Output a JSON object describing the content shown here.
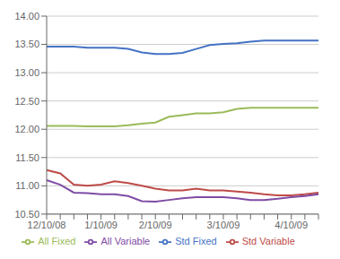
{
  "chart_data": {
    "type": "line",
    "title": "",
    "categories": [
      "12/10/08",
      null,
      null,
      null,
      "1/10/09",
      null,
      null,
      null,
      "2/10/09",
      null,
      null,
      null,
      null,
      "3/10/09",
      null,
      null,
      null,
      null,
      "4/10/09",
      null,
      null
    ],
    "series": [
      {
        "name": "Std Fixed",
        "color": "#4472C4",
        "values": [
          13.46,
          13.46,
          13.46,
          13.44,
          13.44,
          13.44,
          13.42,
          13.36,
          13.33,
          13.33,
          13.35,
          13.42,
          13.49,
          13.51,
          13.52,
          13.55,
          13.57,
          13.57,
          13.57,
          13.57,
          13.57
        ]
      },
      {
        "name": "Std Variable",
        "color": "#BE4B48",
        "values": [
          11.28,
          11.22,
          11.02,
          11.0,
          11.02,
          11.08,
          11.05,
          11.0,
          10.95,
          10.92,
          10.92,
          10.95,
          10.92,
          10.92,
          10.9,
          10.88,
          10.85,
          10.83,
          10.83,
          10.85,
          10.88
        ]
      },
      {
        "name": "All Fixed",
        "color": "#9BBB59",
        "values": [
          12.06,
          12.06,
          12.06,
          12.05,
          12.05,
          12.05,
          12.07,
          12.1,
          12.12,
          12.22,
          12.25,
          12.28,
          12.28,
          12.3,
          12.36,
          12.38,
          12.38,
          12.38,
          12.38,
          12.38,
          12.38
        ]
      },
      {
        "name": "All Variable",
        "color": "#7F4CA5",
        "values": [
          11.1,
          11.02,
          10.88,
          10.87,
          10.85,
          10.85,
          10.82,
          10.73,
          10.72,
          10.75,
          10.78,
          10.8,
          10.8,
          10.8,
          10.78,
          10.75,
          10.75,
          10.77,
          10.8,
          10.82,
          10.85
        ]
      }
    ],
    "ylim": [
      10.5,
      14.0
    ],
    "yticks": [
      {
        "value": 10.5,
        "label": "10.50"
      },
      {
        "value": 11.0,
        "label": "11.00"
      },
      {
        "value": 11.5,
        "label": "11.50"
      },
      {
        "value": 12.0,
        "label": "12.00"
      },
      {
        "value": 12.5,
        "label": "12.50"
      },
      {
        "value": 13.0,
        "label": "13.00"
      },
      {
        "value": 13.5,
        "label": "13.50"
      },
      {
        "value": 14.0,
        "label": "14.00"
      }
    ],
    "grid": true,
    "legend": "bottom"
  }
}
